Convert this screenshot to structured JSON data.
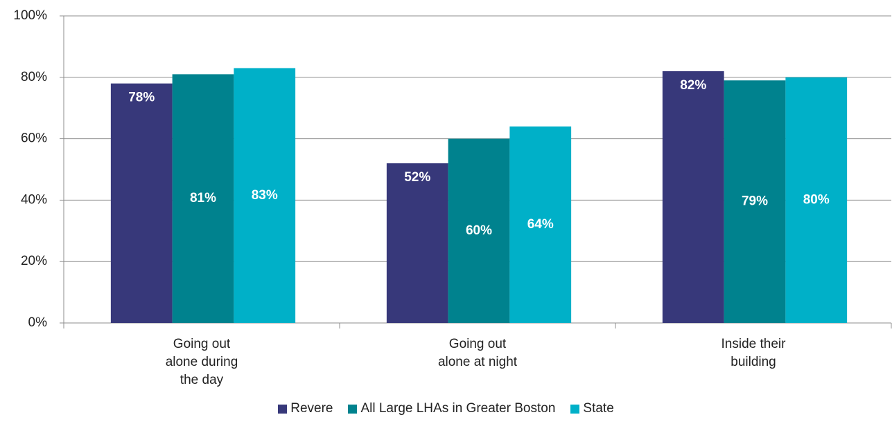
{
  "chart_data": {
    "type": "bar",
    "categories": [
      "Going out\nalone during\nthe day",
      "Going out\nalone at night",
      "Inside their\nbuilding"
    ],
    "series": [
      {
        "name": "Revere",
        "color": "#37387a",
        "values": [
          78,
          52,
          82
        ],
        "value_labels": [
          "78%",
          "52%",
          "82%"
        ]
      },
      {
        "name": "All Large LHAs in Greater Boston",
        "color": "#00828e",
        "values": [
          81,
          60,
          79
        ],
        "value_labels": [
          "81%",
          "60%",
          "79%"
        ]
      },
      {
        "name": "State",
        "color": "#00b0c8",
        "values": [
          83,
          64,
          80
        ],
        "value_labels": [
          "83%",
          "64%",
          "80%"
        ]
      }
    ],
    "ylim": [
      0,
      100
    ],
    "yticks": [
      {
        "value": 0,
        "label": "0%"
      },
      {
        "value": 20,
        "label": "20%"
      },
      {
        "value": 40,
        "label": "40%"
      },
      {
        "value": 60,
        "label": "60%"
      },
      {
        "value": 80,
        "label": "80%"
      },
      {
        "value": 100,
        "label": "100%"
      }
    ],
    "grid": true
  }
}
